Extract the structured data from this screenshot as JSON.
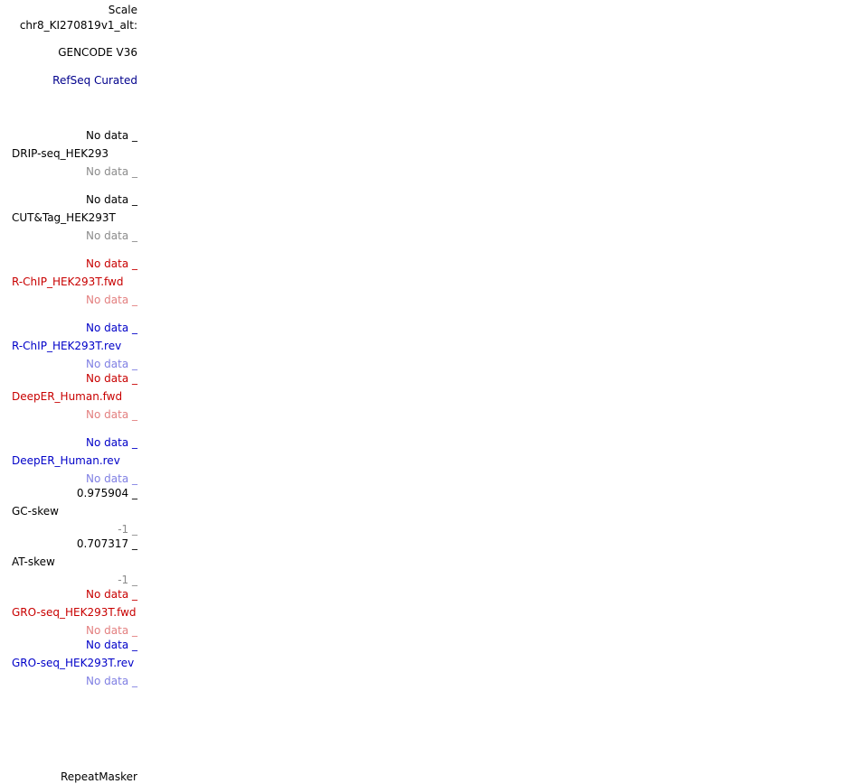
{
  "header": {
    "scale": "Scale",
    "chrom": "chr8_KI270819v1_alt:"
  },
  "tracks": {
    "gencode": "GENCODE V36",
    "refseq": "RefSeq Curated",
    "drip": {
      "top": "No data _",
      "name": "DRIP-seq_HEK293",
      "bottom": "No data _"
    },
    "cuttag": {
      "top": "No data _",
      "name": "CUT&Tag_HEK293T",
      "bottom": "No data _"
    },
    "rchip_fwd": {
      "top": "No data _",
      "name": "R-ChIP_HEK293T.fwd",
      "bottom": "No data _"
    },
    "rchip_rev": {
      "top": "No data _",
      "name": "R-ChIP_HEK293T.rev",
      "bottom": "No data _"
    },
    "deeper_fwd": {
      "top": "No data _",
      "name": "DeepER_Human.fwd",
      "bottom": "No data _"
    },
    "deeper_rev": {
      "top": "No data _",
      "name": "DeepER_Human.rev",
      "bottom": "No data _"
    },
    "gc_skew": {
      "top": "0.975904 _",
      "name": "GC-skew",
      "bottom": "-1 _"
    },
    "at_skew": {
      "top": "0.707317 _",
      "name": "AT-skew",
      "bottom": "-1 _"
    },
    "gro_fwd": {
      "top": "No data _",
      "name": "GRO-seq_HEK293T.fwd",
      "bottom": "No data _"
    },
    "gro_rev": {
      "top": "No data _",
      "name": "GRO-seq_HEK293T.rev",
      "bottom": "No data _"
    },
    "repeatmasker": "RepeatMasker"
  },
  "colors": {
    "black": "#000000",
    "navy": "#00008c",
    "gray": "#8c8c8c",
    "red": "#c80000",
    "pink": "#e37f7f",
    "blue": "#0000c8",
    "light_blue": "#7f7fe3"
  }
}
